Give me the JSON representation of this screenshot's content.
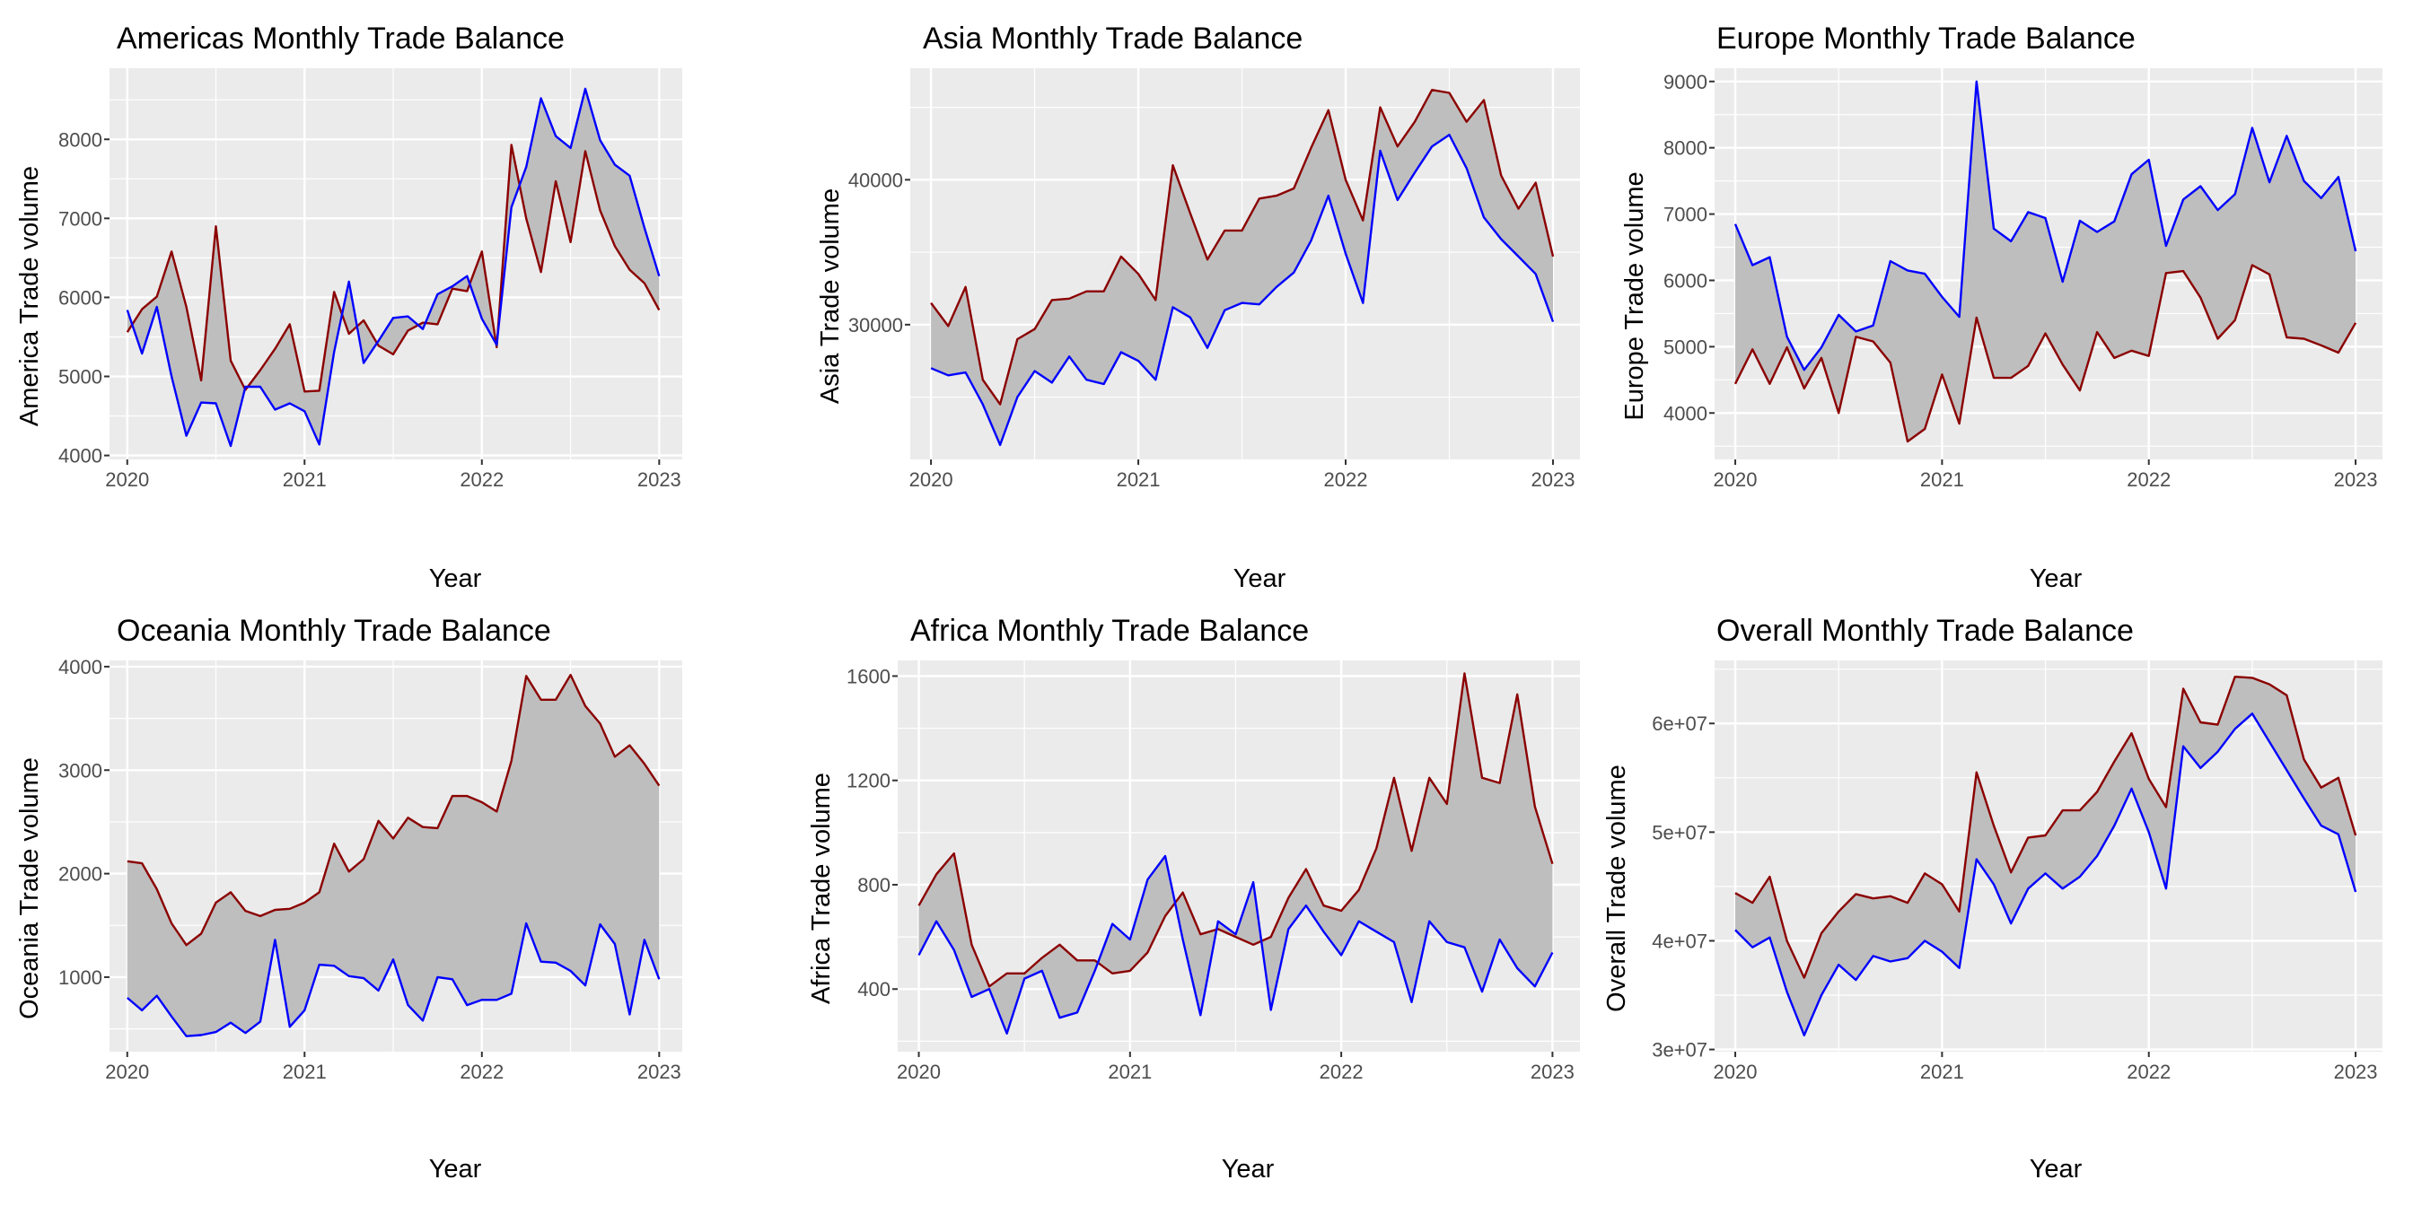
{
  "colors": {
    "panel_bg": "#ebebeb",
    "grid": "#ffffff",
    "ribbon": "#bebebe",
    "line_a": "#0000ff",
    "line_b": "#8b0000"
  },
  "chart_data": [
    {
      "type": "area",
      "title": "Americas Monthly Trade Balance",
      "xlabel": "Year",
      "ylabel": "America Trade volume",
      "xlim": [
        2019.9,
        2023.13
      ],
      "xticks": [
        "2020",
        "2021",
        "2022",
        "2023"
      ],
      "ylim": [
        3950,
        8900
      ],
      "yticks": [
        "4000",
        "5000",
        "6000",
        "7000",
        "8000"
      ],
      "x_start": 2020,
      "grid": true,
      "series": [
        {
          "color": "#0000ff",
          "values": [
            5840,
            5290,
            5880,
            5000,
            4250,
            4670,
            4660,
            4120,
            4870,
            4870,
            4580,
            4660,
            4560,
            4140,
            5310,
            6200,
            5170,
            5450,
            5740,
            5760,
            5600,
            6040,
            6140,
            6270,
            5730,
            5400,
            7140,
            7650,
            8520,
            8040,
            7890,
            8640,
            7990,
            7680,
            7540,
            6880,
            6270
          ]
        },
        {
          "color": "#8b0000",
          "values": [
            5560,
            5850,
            6010,
            6580,
            5880,
            4950,
            6900,
            5200,
            4830,
            5080,
            5350,
            5660,
            4810,
            4820,
            6070,
            5540,
            5710,
            5390,
            5280,
            5580,
            5680,
            5660,
            6110,
            6080,
            6580,
            5370,
            7930,
            7000,
            6320,
            7470,
            6700,
            7850,
            7100,
            6650,
            6350,
            6180,
            5840
          ]
        }
      ]
    },
    {
      "type": "area",
      "title": "Asia Monthly Trade Balance",
      "xlabel": "Year",
      "ylabel": "Asia Trade volume",
      "xlim": [
        2019.9,
        2023.13
      ],
      "xticks": [
        "2020",
        "2021",
        "2022",
        "2023"
      ],
      "ylim": [
        20700,
        47700
      ],
      "yticks": [
        "30000",
        "40000"
      ],
      "x_start": 2020,
      "grid": true,
      "series": [
        {
          "color": "#0000ff",
          "values": [
            27000,
            26500,
            26700,
            24500,
            21700,
            25000,
            26800,
            26000,
            27800,
            26200,
            25900,
            28100,
            27500,
            26200,
            31200,
            30500,
            28400,
            31000,
            31500,
            31400,
            32600,
            33600,
            35800,
            38900,
            34900,
            31500,
            42000,
            38600,
            40500,
            42300,
            43100,
            40800,
            37400,
            35900,
            34700,
            33500,
            30200
          ]
        },
        {
          "color": "#8b0000",
          "values": [
            31500,
            29900,
            32600,
            26200,
            24500,
            29000,
            29700,
            31700,
            31800,
            32300,
            32300,
            34700,
            33500,
            31700,
            41000,
            37700,
            34500,
            36500,
            36500,
            38700,
            38900,
            39400,
            42200,
            44800,
            40000,
            37200,
            45000,
            42300,
            44000,
            46200,
            46000,
            44000,
            45500,
            40300,
            38000,
            39800,
            34700
          ]
        }
      ]
    },
    {
      "type": "area",
      "title": "Europe Monthly Trade Balance",
      "xlabel": "Year",
      "ylabel": "Europe Trade volume",
      "xlim": [
        2019.9,
        2023.13
      ],
      "xticks": [
        "2020",
        "2021",
        "2022",
        "2023"
      ],
      "ylim": [
        3300,
        9200
      ],
      "yticks": [
        "4000",
        "5000",
        "6000",
        "7000",
        "8000",
        "9000"
      ],
      "x_start": 2020,
      "grid": true,
      "series": [
        {
          "color": "#0000ff",
          "values": [
            6850,
            6230,
            6350,
            5150,
            4650,
            4990,
            5480,
            5230,
            5320,
            6290,
            6150,
            6100,
            5750,
            5450,
            9000,
            6780,
            6590,
            7030,
            6940,
            5980,
            6900,
            6730,
            6890,
            7600,
            7820,
            6520,
            7220,
            7420,
            7060,
            7300,
            8300,
            7480,
            8180,
            7500,
            7240,
            7560,
            6440
          ]
        },
        {
          "color": "#8b0000",
          "values": [
            4440,
            4960,
            4440,
            4990,
            4370,
            4830,
            4000,
            5150,
            5080,
            4760,
            3570,
            3760,
            4580,
            3840,
            5440,
            4530,
            4530,
            4710,
            5200,
            4730,
            4340,
            5220,
            4830,
            4940,
            4860,
            6110,
            6140,
            5740,
            5120,
            5400,
            6230,
            6090,
            5140,
            5120,
            5020,
            4910,
            5360
          ]
        }
      ]
    },
    {
      "type": "area",
      "title": "Oceania Monthly Trade Balance",
      "xlabel": "Year",
      "ylabel": "Oceania Trade volume",
      "xlim": [
        2019.9,
        2023.13
      ],
      "xticks": [
        "2020",
        "2021",
        "2022",
        "2023"
      ],
      "ylim": [
        280,
        4060
      ],
      "yticks": [
        "1000",
        "2000",
        "3000",
        "4000"
      ],
      "x_start": 2020,
      "grid": true,
      "series": [
        {
          "color": "#0000ff",
          "values": [
            800,
            680,
            820,
            620,
            430,
            440,
            470,
            560,
            460,
            570,
            1360,
            520,
            680,
            1120,
            1110,
            1010,
            990,
            870,
            1170,
            730,
            580,
            1000,
            980,
            730,
            780,
            780,
            840,
            1520,
            1150,
            1140,
            1060,
            920,
            1510,
            1320,
            640,
            1360,
            980
          ]
        },
        {
          "color": "#8b0000",
          "values": [
            2120,
            2100,
            1850,
            1520,
            1310,
            1420,
            1720,
            1820,
            1640,
            1590,
            1650,
            1660,
            1720,
            1820,
            2290,
            2020,
            2140,
            2510,
            2340,
            2540,
            2450,
            2440,
            2750,
            2750,
            2690,
            2600,
            3090,
            3910,
            3680,
            3680,
            3920,
            3620,
            3450,
            3130,
            3240,
            3060,
            2850
          ]
        }
      ]
    },
    {
      "type": "area",
      "title": "Africa Monthly Trade Balance",
      "xlabel": "Year",
      "ylabel": "Africa Trade volume",
      "xlim": [
        2019.9,
        2023.13
      ],
      "xticks": [
        "2020",
        "2021",
        "2022",
        "2023"
      ],
      "ylim": [
        160,
        1660
      ],
      "yticks": [
        "400",
        "800",
        "1200",
        "1600"
      ],
      "x_start": 2020,
      "grid": true,
      "series": [
        {
          "color": "#0000ff",
          "values": [
            530,
            660,
            550,
            370,
            400,
            230,
            440,
            470,
            290,
            310,
            470,
            650,
            590,
            820,
            910,
            590,
            300,
            660,
            610,
            810,
            320,
            630,
            720,
            620,
            530,
            660,
            620,
            580,
            350,
            660,
            580,
            560,
            390,
            590,
            480,
            410,
            540
          ]
        },
        {
          "color": "#8b0000",
          "values": [
            720,
            840,
            920,
            570,
            410,
            460,
            460,
            520,
            570,
            510,
            510,
            460,
            470,
            540,
            680,
            770,
            610,
            630,
            600,
            570,
            600,
            750,
            860,
            720,
            700,
            780,
            940,
            1210,
            930,
            1210,
            1110,
            1610,
            1210,
            1190,
            1530,
            1100,
            880
          ]
        }
      ]
    },
    {
      "type": "area",
      "title": "Overall Monthly Trade Balance",
      "xlabel": "Year",
      "ylabel": "Overall Trade volume",
      "xlim": [
        2019.9,
        2023.13
      ],
      "xticks": [
        "2020",
        "2021",
        "2022",
        "2023"
      ],
      "ylim": [
        29800000,
        65800000
      ],
      "yticks": [
        "3e+07",
        "4e+07",
        "5e+07",
        "6e+07"
      ],
      "ytick_values": [
        30000000,
        40000000,
        50000000,
        60000000
      ],
      "x_start": 2020,
      "grid": true,
      "series": [
        {
          "color": "#0000ff",
          "values": [
            41000000,
            39400000,
            40300000,
            35300000,
            31300000,
            35000000,
            37800000,
            36400000,
            38600000,
            38100000,
            38400000,
            40000000,
            39000000,
            37500000,
            47500000,
            45200000,
            41600000,
            44800000,
            46200000,
            44800000,
            45900000,
            47800000,
            50600000,
            54000000,
            50000000,
            44800000,
            57900000,
            55900000,
            57400000,
            59500000,
            60900000,
            58300000,
            55700000,
            53100000,
            50600000,
            49800000,
            44500000
          ]
        },
        {
          "color": "#8b0000",
          "values": [
            44400000,
            43500000,
            45900000,
            40000000,
            36600000,
            40700000,
            42700000,
            44300000,
            43900000,
            44100000,
            43500000,
            46200000,
            45200000,
            42700000,
            55500000,
            50600000,
            46300000,
            49500000,
            49700000,
            52000000,
            52000000,
            53700000,
            56500000,
            59100000,
            54900000,
            52300000,
            63200000,
            60100000,
            59900000,
            64300000,
            64200000,
            63600000,
            62600000,
            56700000,
            54100000,
            55000000,
            49700000
          ]
        }
      ]
    }
  ]
}
